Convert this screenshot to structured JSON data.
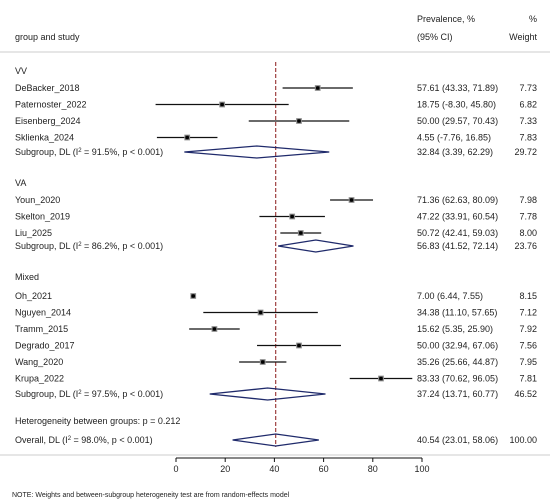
{
  "header": {
    "group_study": "group and study",
    "prevalence_top": "Prevalence, %",
    "prevalence_bottom": "(95% CI)",
    "weight_top": "%",
    "weight_bottom": "Weight"
  },
  "chart_data": {
    "type": "forest",
    "xlim": [
      0,
      100
    ],
    "xticks": [
      "0",
      "20",
      "40",
      "60",
      "80",
      "100"
    ],
    "overall_line": 40.54,
    "groups": [
      {
        "name": "VV",
        "studies": [
          {
            "name": "DeBacker_2018",
            "est": 57.61,
            "lo": 43.33,
            "hi": 71.89,
            "ci_text": "57.61 (43.33, 71.89)",
            "weight": "7.73"
          },
          {
            "name": "Paternoster_2022",
            "est": 18.75,
            "lo": -8.3,
            "hi": 45.8,
            "ci_text": "18.75 (-8.30, 45.80)",
            "weight": "6.82"
          },
          {
            "name": "Eisenberg_2024",
            "est": 50.0,
            "lo": 29.57,
            "hi": 70.43,
            "ci_text": "50.00 (29.57, 70.43)",
            "weight": "7.33"
          },
          {
            "name": "Sklienka_2024",
            "est": 4.55,
            "lo": -7.76,
            "hi": 16.85,
            "ci_text": "4.55 (-7.76, 16.85)",
            "weight": "7.83"
          }
        ],
        "subgroup": {
          "label_pre": "Subgroup, DL (I",
          "label_sup": "2",
          "label_post": " = 91.5%, p < 0.001)",
          "est": 32.84,
          "lo": 3.39,
          "hi": 62.29,
          "ci_text": "32.84 (3.39, 62.29)",
          "weight": "29.72"
        }
      },
      {
        "name": "VA",
        "studies": [
          {
            "name": "Youn_2020",
            "est": 71.36,
            "lo": 62.63,
            "hi": 80.09,
            "ci_text": "71.36 (62.63, 80.09)",
            "weight": "7.98"
          },
          {
            "name": "Skelton_2019",
            "est": 47.22,
            "lo": 33.91,
            "hi": 60.54,
            "ci_text": "47.22 (33.91, 60.54)",
            "weight": "7.78"
          },
          {
            "name": "Liu_2025",
            "est": 50.72,
            "lo": 42.41,
            "hi": 59.03,
            "ci_text": "50.72 (42.41, 59.03)",
            "weight": "8.00"
          }
        ],
        "subgroup": {
          "label_pre": "Subgroup, DL (I",
          "label_sup": "2",
          "label_post": " = 86.2%, p < 0.001)",
          "est": 56.83,
          "lo": 41.52,
          "hi": 72.14,
          "ci_text": "56.83 (41.52, 72.14)",
          "weight": "23.76"
        }
      },
      {
        "name": "Mixed",
        "studies": [
          {
            "name": "Oh_2021",
            "est": 7.0,
            "lo": 6.44,
            "hi": 7.55,
            "ci_text": "7.00 (6.44, 7.55)",
            "weight": "8.15"
          },
          {
            "name": "Nguyen_2014",
            "est": 34.38,
            "lo": 11.1,
            "hi": 57.65,
            "ci_text": "34.38 (11.10, 57.65)",
            "weight": "7.12"
          },
          {
            "name": "Tramm_2015",
            "est": 15.62,
            "lo": 5.35,
            "hi": 25.9,
            "ci_text": "15.62 (5.35, 25.90)",
            "weight": "7.92"
          },
          {
            "name": "Degrado_2017",
            "est": 50.0,
            "lo": 32.94,
            "hi": 67.06,
            "ci_text": "50.00 (32.94, 67.06)",
            "weight": "7.56"
          },
          {
            "name": "Wang_2020",
            "est": 35.26,
            "lo": 25.66,
            "hi": 44.87,
            "ci_text": "35.26 (25.66, 44.87)",
            "weight": "7.95"
          },
          {
            "name": "Krupa_2022",
            "est": 83.33,
            "lo": 70.62,
            "hi": 96.05,
            "ci_text": "83.33 (70.62, 96.05)",
            "weight": "7.81"
          }
        ],
        "subgroup": {
          "label_pre": "Subgroup, DL (I",
          "label_sup": "2",
          "label_post": " = 97.5%, p < 0.001)",
          "est": 37.24,
          "lo": 13.71,
          "hi": 60.77,
          "ci_text": "37.24 (13.71, 60.77)",
          "weight": "46.52"
        }
      }
    ],
    "heterogeneity": "Heterogeneity between groups: p = 0.212",
    "overall": {
      "label_pre": "Overall, DL (I",
      "label_sup": "2",
      "label_post": " = 98.0%, p < 0.001)",
      "est": 40.54,
      "lo": 23.01,
      "hi": 58.06,
      "ci_text": "40.54 (23.01, 58.06)",
      "weight": "100.00"
    }
  },
  "note": "NOTE: Weights and between-subgroup heterogeneity test are from random-effects model",
  "colors": {
    "diamond": "#1f2a6b",
    "ref_line": "#8b1a1a",
    "marker": "#555555",
    "rule": "#bbbbbb"
  }
}
